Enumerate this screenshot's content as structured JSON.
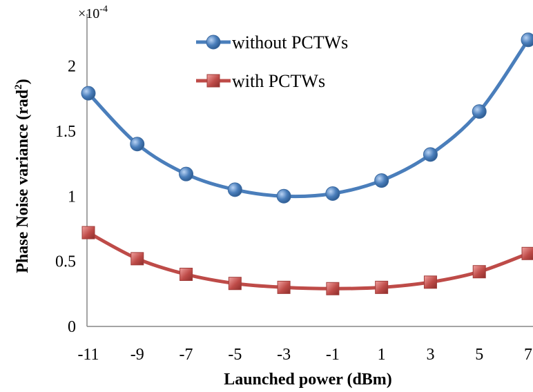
{
  "chart_data": {
    "type": "line",
    "xlabel": "Launched power (dBm)",
    "ylabel": "Phase Noise variance (rad",
    "ylabel_sup": "2",
    "ylabel_close": ")",
    "exponent_base": "×10",
    "exponent_power": "-4",
    "x": [
      -11,
      -9,
      -7,
      -5,
      -3,
      -1,
      1,
      3,
      5,
      7
    ],
    "x_tick_labels": [
      "-11",
      "-9",
      "-7",
      "-5",
      "-3",
      "-1",
      "1",
      "3",
      "5",
      "7"
    ],
    "y_ticks": [
      0,
      0.5,
      1,
      1.5,
      2
    ],
    "y_tick_labels": [
      "0",
      "0.5",
      "1",
      "1.5",
      "2"
    ],
    "xlim": [
      -11,
      7
    ],
    "ylim": [
      0,
      2.4
    ],
    "legend_position": "top-center",
    "series": [
      {
        "name": "without PCTWs",
        "color": "#4a7ebb",
        "marker": "circle",
        "values": [
          1.79,
          1.4,
          1.17,
          1.05,
          1.0,
          1.02,
          1.12,
          1.32,
          1.65,
          2.2
        ]
      },
      {
        "name": "with PCTWs",
        "color": "#be4b48",
        "marker": "square",
        "values": [
          0.72,
          0.52,
          0.4,
          0.33,
          0.3,
          0.29,
          0.3,
          0.34,
          0.42,
          0.56
        ]
      }
    ]
  }
}
